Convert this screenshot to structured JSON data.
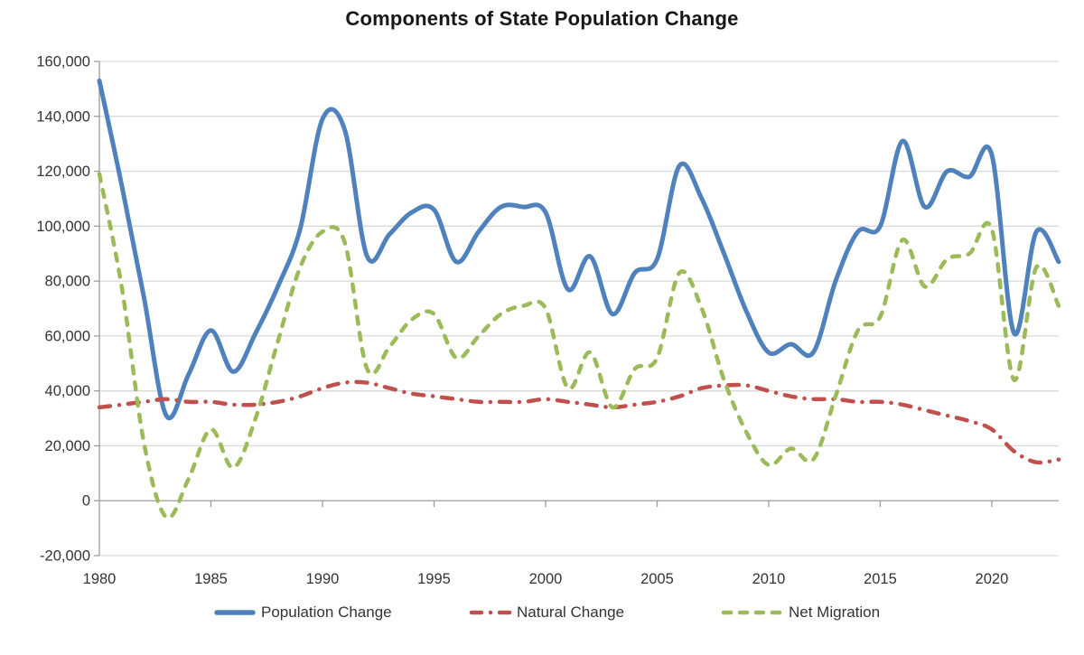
{
  "chart_data": {
    "type": "line",
    "title": "Components of State Population Change",
    "smooth": true,
    "grid": "horizontal",
    "legend_position": "bottom",
    "x": [
      1980,
      1981,
      1982,
      1983,
      1984,
      1985,
      1986,
      1987,
      1988,
      1989,
      1990,
      1991,
      1992,
      1993,
      1994,
      1995,
      1996,
      1997,
      1998,
      1999,
      2000,
      2001,
      2002,
      2003,
      2004,
      2005,
      2006,
      2007,
      2008,
      2009,
      2010,
      2011,
      2012,
      2013,
      2014,
      2015,
      2016,
      2017,
      2018,
      2019,
      2020,
      2021,
      2022,
      2023
    ],
    "x_ticks": [
      1980,
      1985,
      1990,
      1995,
      2000,
      2005,
      2010,
      2015,
      2020
    ],
    "x_tick_labels": [
      "1980",
      "1985",
      "1990",
      "1995",
      "2000",
      "2005",
      "2010",
      "2015",
      "2020"
    ],
    "ylim": [
      -20000,
      160000
    ],
    "y_ticks": [
      160000,
      140000,
      120000,
      100000,
      80000,
      60000,
      40000,
      20000,
      0,
      -20000
    ],
    "y_tick_labels": [
      "160,000",
      "140,000",
      "120,000",
      "100,000",
      "80,000",
      "60,000",
      "40,000",
      "20,000",
      "0",
      "-20,000"
    ],
    "series": [
      {
        "name": "Population Change",
        "style": "solid",
        "color": "#4F81BD",
        "values": [
          153000,
          115000,
          74000,
          31000,
          46000,
          62000,
          47000,
          61000,
          78000,
          99000,
          139000,
          135000,
          89000,
          97000,
          105000,
          106000,
          87000,
          98000,
          107000,
          107000,
          105000,
          77000,
          89000,
          68000,
          83000,
          88000,
          122000,
          110000,
          90000,
          69000,
          54000,
          57000,
          54000,
          80000,
          98000,
          100000,
          131000,
          107000,
          120000,
          118000,
          126000,
          61000,
          98000,
          87000
        ]
      },
      {
        "name": "Natural Change",
        "style": "dash-dot",
        "color": "#C0504D",
        "values": [
          34000,
          35000,
          36000,
          37000,
          36000,
          36000,
          35000,
          35000,
          36000,
          38000,
          41000,
          43000,
          43000,
          41000,
          39000,
          38000,
          37000,
          36000,
          36000,
          36000,
          37000,
          36000,
          35000,
          34000,
          35000,
          36000,
          38000,
          41000,
          42000,
          42000,
          40000,
          38000,
          37000,
          37000,
          36000,
          36000,
          35000,
          33000,
          31000,
          29000,
          26000,
          18000,
          14000,
          15000
        ]
      },
      {
        "name": "Net Migration",
        "style": "dashed",
        "color": "#9BBB59",
        "values": [
          119000,
          78000,
          21000,
          -6000,
          8000,
          26000,
          12000,
          30000,
          58000,
          85000,
          98000,
          94000,
          48000,
          56000,
          66000,
          68000,
          52000,
          60000,
          68000,
          71000,
          70000,
          41000,
          54000,
          34000,
          48000,
          52000,
          83000,
          70000,
          44000,
          25000,
          13000,
          19000,
          15000,
          38000,
          62000,
          67000,
          95000,
          78000,
          88000,
          90000,
          99000,
          44000,
          85000,
          71000
        ]
      }
    ]
  },
  "colors": {
    "gridline": "#D9D9D9",
    "axis_line": "#9C9C9C",
    "label_text": "#333333",
    "title_text": "#171717"
  }
}
